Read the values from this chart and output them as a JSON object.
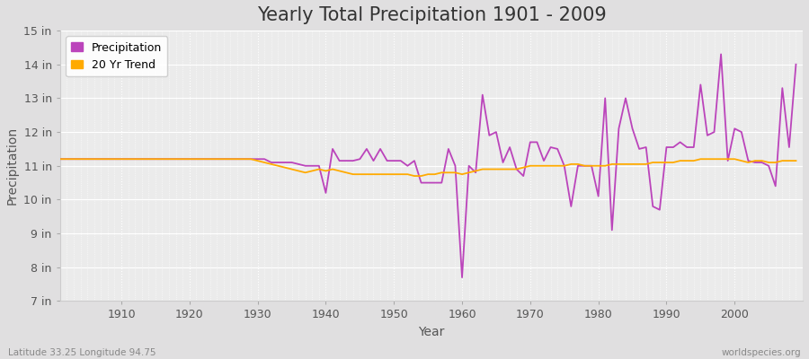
{
  "title": "Yearly Total Precipitation 1901 - 2009",
  "xlabel": "Year",
  "ylabel": "Precipitation",
  "fig_bg_color": "#e0dfe0",
  "plot_bg_color": "#ebebeb",
  "precip_color": "#bb44bb",
  "trend_color": "#ffaa00",
  "ylim": [
    7,
    15
  ],
  "yticks": [
    7,
    8,
    9,
    10,
    11,
    12,
    13,
    14,
    15
  ],
  "ytick_labels": [
    "7 in",
    "8 in",
    "9 in",
    "10 in",
    "11 in",
    "12 in",
    "13 in",
    "14 in",
    "15 in"
  ],
  "xlim": [
    1901,
    2010
  ],
  "xticks": [
    1910,
    1920,
    1930,
    1940,
    1950,
    1960,
    1970,
    1980,
    1990,
    2000
  ],
  "years": [
    1901,
    1902,
    1903,
    1904,
    1905,
    1906,
    1907,
    1908,
    1909,
    1910,
    1911,
    1912,
    1913,
    1914,
    1915,
    1916,
    1917,
    1918,
    1919,
    1920,
    1921,
    1922,
    1923,
    1924,
    1925,
    1926,
    1927,
    1928,
    1929,
    1930,
    1931,
    1932,
    1933,
    1934,
    1935,
    1936,
    1937,
    1938,
    1939,
    1940,
    1941,
    1942,
    1943,
    1944,
    1945,
    1946,
    1947,
    1948,
    1949,
    1950,
    1951,
    1952,
    1953,
    1954,
    1955,
    1956,
    1957,
    1958,
    1959,
    1960,
    1961,
    1962,
    1963,
    1964,
    1965,
    1966,
    1967,
    1968,
    1969,
    1970,
    1971,
    1972,
    1973,
    1974,
    1975,
    1976,
    1977,
    1978,
    1979,
    1980,
    1981,
    1982,
    1983,
    1984,
    1985,
    1986,
    1987,
    1988,
    1989,
    1990,
    1991,
    1992,
    1993,
    1994,
    1995,
    1996,
    1997,
    1998,
    1999,
    2000,
    2001,
    2002,
    2003,
    2004,
    2005,
    2006,
    2007,
    2008,
    2009
  ],
  "precip": [
    11.2,
    11.2,
    11.2,
    11.2,
    11.2,
    11.2,
    11.2,
    11.2,
    11.2,
    11.2,
    11.2,
    11.2,
    11.2,
    11.2,
    11.2,
    11.2,
    11.2,
    11.2,
    11.2,
    11.2,
    11.2,
    11.2,
    11.2,
    11.2,
    11.2,
    11.2,
    11.2,
    11.2,
    11.2,
    11.2,
    11.2,
    11.1,
    11.1,
    11.1,
    11.1,
    11.05,
    11.0,
    11.0,
    11.0,
    10.2,
    11.5,
    11.15,
    11.15,
    11.15,
    11.2,
    11.5,
    11.15,
    11.5,
    11.15,
    11.15,
    11.15,
    11.0,
    11.15,
    10.5,
    10.5,
    10.5,
    10.5,
    11.5,
    11.0,
    7.7,
    11.0,
    10.8,
    13.1,
    11.9,
    12.0,
    11.1,
    11.55,
    10.9,
    10.7,
    11.7,
    11.7,
    11.15,
    11.55,
    11.5,
    11.0,
    9.8,
    11.0,
    11.0,
    11.0,
    10.1,
    13.0,
    9.1,
    12.1,
    13.0,
    12.1,
    11.5,
    11.55,
    9.8,
    9.7,
    11.55,
    11.55,
    11.7,
    11.55,
    11.55,
    13.4,
    11.9,
    12.0,
    14.3,
    11.15,
    12.1,
    12.0,
    11.15,
    11.1,
    11.1,
    11.0,
    10.4,
    13.3,
    11.55,
    14.0
  ],
  "trend": [
    11.2,
    11.2,
    11.2,
    11.2,
    11.2,
    11.2,
    11.2,
    11.2,
    11.2,
    11.2,
    11.2,
    11.2,
    11.2,
    11.2,
    11.2,
    11.2,
    11.2,
    11.2,
    11.2,
    11.2,
    11.2,
    11.2,
    11.2,
    11.2,
    11.2,
    11.2,
    11.2,
    11.2,
    11.2,
    11.15,
    11.1,
    11.05,
    11.0,
    10.95,
    10.9,
    10.85,
    10.8,
    10.85,
    10.9,
    10.85,
    10.9,
    10.85,
    10.8,
    10.75,
    10.75,
    10.75,
    10.75,
    10.75,
    10.75,
    10.75,
    10.75,
    10.75,
    10.7,
    10.7,
    10.75,
    10.75,
    10.8,
    10.8,
    10.8,
    10.75,
    10.8,
    10.85,
    10.9,
    10.9,
    10.9,
    10.9,
    10.9,
    10.9,
    10.95,
    11.0,
    11.0,
    11.0,
    11.0,
    11.0,
    11.0,
    11.05,
    11.05,
    11.0,
    11.0,
    11.0,
    11.0,
    11.05,
    11.05,
    11.05,
    11.05,
    11.05,
    11.05,
    11.1,
    11.1,
    11.1,
    11.1,
    11.15,
    11.15,
    11.15,
    11.2,
    11.2,
    11.2,
    11.2,
    11.2,
    11.2,
    11.15,
    11.1,
    11.15,
    11.15,
    11.1,
    11.1,
    11.15,
    11.15,
    11.15
  ],
  "grid_color": "#ffffff",
  "title_fontsize": 15,
  "label_fontsize": 10,
  "tick_fontsize": 9,
  "legend_fontsize": 9,
  "watermark_left": "Latitude 33.25 Longitude 94.75",
  "watermark_right": "worldspecies.org",
  "line_width": 1.3
}
